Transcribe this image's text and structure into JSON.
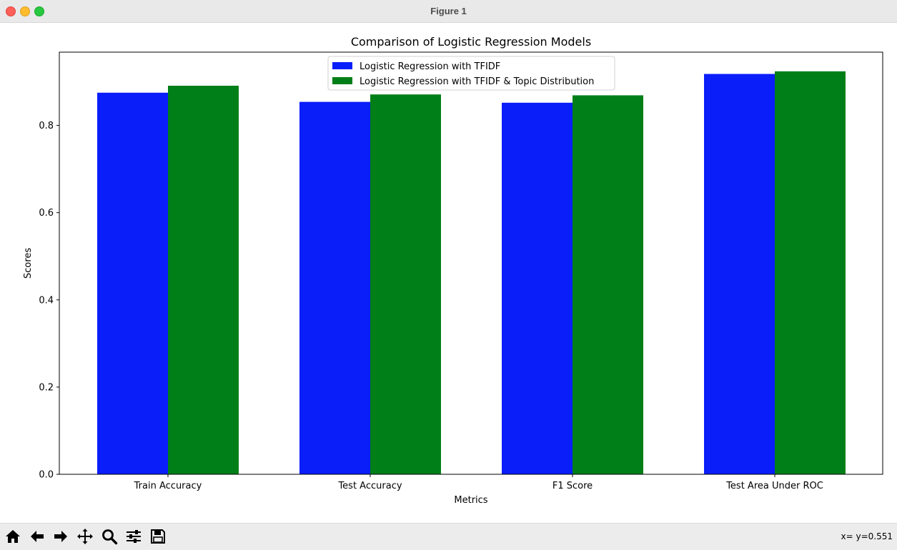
{
  "window": {
    "title": "Figure 1"
  },
  "toolbar": {
    "buttons": [
      {
        "name": "home-icon"
      },
      {
        "name": "back-arrow-icon"
      },
      {
        "name": "forward-arrow-icon"
      },
      {
        "name": "pan-icon"
      },
      {
        "name": "zoom-icon"
      },
      {
        "name": "configure-subplots-icon"
      },
      {
        "name": "save-icon"
      }
    ],
    "coords_text": "x= y=0.551"
  },
  "chart_data": {
    "type": "bar",
    "title": "Comparison of Logistic Regression Models",
    "xlabel": "Metrics",
    "ylabel": "Scores",
    "categories": [
      "Train Accuracy",
      "Test Accuracy",
      "F1 Score",
      "Test Area Under ROC"
    ],
    "series": [
      {
        "name": "Logistic Regression with TFIDF",
        "color": "#0a1efa",
        "values": [
          0.875,
          0.854,
          0.852,
          0.918
        ]
      },
      {
        "name": "Logistic Regression with TFIDF & Topic Distribution",
        "color": "#007f18",
        "values": [
          0.891,
          0.871,
          0.869,
          0.924
        ]
      }
    ],
    "ylim": [
      0,
      0.968
    ],
    "yticks": [
      0.0,
      0.2,
      0.4,
      0.6,
      0.8
    ],
    "ytick_labels": [
      "0.0",
      "0.2",
      "0.4",
      "0.6",
      "0.8"
    ],
    "grid": false,
    "legend_position": "top-center"
  }
}
